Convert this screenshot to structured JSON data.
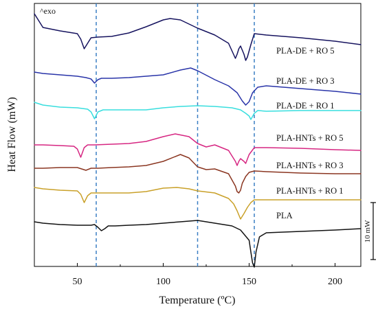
{
  "chart_data": {
    "type": "line",
    "title": "",
    "xlabel": "Temperature (ºC)",
    "ylabel": "Heat Flow (mW)",
    "xlim": [
      25,
      215
    ],
    "xticks": [
      50,
      100,
      150,
      200
    ],
    "x_tick_labels": [
      "50",
      "100",
      "150",
      "200"
    ],
    "annotation": "^exo",
    "scale_bar": {
      "label": "10 mW",
      "value_mW": 10
    },
    "reference_lines_x": [
      61,
      120,
      153
    ],
    "grid": false,
    "legend": "inline-right",
    "series": [
      {
        "name": "PLA-DE + RO 5",
        "color": "#15125e",
        "x": [
          25,
          30,
          40,
          50,
          52,
          54,
          56,
          58,
          62,
          70,
          80,
          90,
          100,
          104,
          110,
          120,
          130,
          138,
          142,
          143,
          144,
          145,
          146,
          147,
          148,
          149,
          151,
          153,
          160,
          180,
          200,
          215
        ],
        "y": [
          15,
          35,
          40,
          44,
          52,
          66,
          58,
          50,
          49,
          48,
          43,
          34,
          24,
          22,
          24,
          36,
          46,
          58,
          80,
          74,
          66,
          62,
          68,
          74,
          83,
          78,
          60,
          44,
          46,
          50,
          55,
          60
        ]
      },
      {
        "name": "PLA-DE + RO 3",
        "color": "#2833a8",
        "x": [
          25,
          30,
          40,
          50,
          55,
          58,
          60,
          62,
          64,
          70,
          80,
          90,
          100,
          110,
          116,
          120,
          130,
          138,
          143,
          146,
          148,
          150,
          152,
          155,
          160,
          180,
          200,
          215
        ],
        "y": [
          100,
          102,
          104,
          106,
          108,
          110,
          116,
          111,
          109,
          109,
          108,
          106,
          104,
          97,
          94,
          98,
          111,
          120,
          130,
          142,
          148,
          143,
          130,
          122,
          120,
          124,
          128,
          132
        ]
      },
      {
        "name": "PLA-DE + RO 1",
        "color": "#37dede",
        "x": [
          25,
          30,
          40,
          50,
          56,
          58,
          60,
          62,
          65,
          70,
          80,
          90,
          100,
          110,
          120,
          130,
          140,
          145,
          148,
          150,
          151,
          153,
          155,
          160,
          180,
          200,
          215
        ],
        "y": [
          144,
          148,
          151,
          152,
          154,
          158,
          168,
          158,
          155,
          155,
          155,
          155,
          152,
          150,
          149,
          150,
          152,
          155,
          160,
          164,
          169,
          160,
          156,
          157,
          156,
          156,
          156
        ]
      },
      {
        "name": "PLA-HNTs + RO 5",
        "color": "#d62581",
        "x": [
          25,
          30,
          40,
          48,
          50,
          52,
          54,
          56,
          60,
          70,
          80,
          90,
          100,
          107,
          115,
          120,
          125,
          130,
          138,
          142,
          143,
          144,
          145,
          147,
          148,
          150,
          153,
          160,
          180,
          200,
          215
        ],
        "y": [
          206,
          206,
          207,
          208,
          212,
          224,
          210,
          206,
          206,
          205,
          204,
          201,
          194,
          190,
          194,
          204,
          209,
          206,
          214,
          230,
          236,
          230,
          226,
          230,
          233,
          220,
          210,
          210,
          211,
          213,
          214
        ]
      },
      {
        "name": "PLA-HNTs + RO 3",
        "color": "#8a3520",
        "x": [
          25,
          30,
          40,
          50,
          55,
          58,
          62,
          70,
          80,
          90,
          100,
          110,
          115,
          120,
          125,
          130,
          138,
          142,
          143,
          144,
          145,
          146,
          148,
          150,
          153,
          160,
          180,
          200,
          215
        ],
        "y": [
          240,
          240,
          239,
          239,
          243,
          240,
          240,
          239,
          238,
          236,
          230,
          220,
          225,
          238,
          242,
          241,
          248,
          266,
          274,
          276,
          272,
          262,
          252,
          246,
          244,
          245,
          247,
          248,
          248
        ]
      },
      {
        "name": "PLA-HNTs + RO 1",
        "color": "#c9a028",
        "x": [
          25,
          30,
          40,
          50,
          52,
          54,
          56,
          58,
          62,
          70,
          80,
          90,
          100,
          108,
          115,
          120,
          130,
          138,
          141,
          143,
          145,
          147,
          149,
          151,
          153,
          160,
          180,
          200,
          215
        ],
        "y": [
          268,
          270,
          272,
          273,
          278,
          290,
          280,
          276,
          276,
          276,
          276,
          274,
          269,
          268,
          270,
          273,
          276,
          284,
          292,
          302,
          314,
          306,
          297,
          290,
          286,
          286,
          286,
          286,
          286
        ]
      },
      {
        "name": "PLA",
        "color": "#111111",
        "x": [
          25,
          30,
          40,
          50,
          58,
          60,
          62,
          64,
          66,
          68,
          72,
          80,
          90,
          100,
          110,
          120,
          125,
          130,
          140,
          145,
          150,
          151,
          152,
          153,
          154,
          156,
          160,
          180,
          200,
          215
        ],
        "y": [
          318,
          320,
          322,
          323,
          323,
          322,
          326,
          331,
          328,
          324,
          324,
          323,
          322,
          320,
          318,
          316,
          318,
          320,
          324,
          330,
          345,
          362,
          378,
          384,
          362,
          340,
          334,
          332,
          330,
          328
        ]
      }
    ]
  }
}
